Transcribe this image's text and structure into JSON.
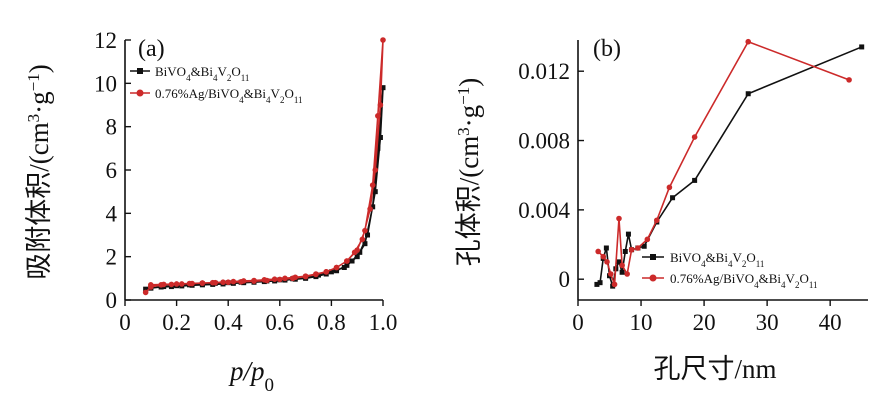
{
  "chart_data": [
    {
      "type": "line",
      "panel_label": "(a)",
      "xlabel": "p/p0",
      "ylabel": "吸附体积/(cm3·g−1)",
      "xlim": [
        0,
        1.0
      ],
      "ylim": [
        0,
        12
      ],
      "x_ticks": [
        "0",
        "0.2",
        "0.4",
        "0.6",
        "0.8",
        "1.0"
      ],
      "y_ticks": [
        "0",
        "2",
        "4",
        "6",
        "8",
        "10",
        "12"
      ],
      "grid": false,
      "legend_position": "top-left",
      "series": [
        {
          "name": "BiVO4&Bi4V2O11",
          "color": "#111111",
          "marker": "square",
          "x": [
            0.08,
            0.1,
            0.14,
            0.18,
            0.22,
            0.26,
            0.3,
            0.34,
            0.38,
            0.42,
            0.46,
            0.5,
            0.54,
            0.58,
            0.62,
            0.66,
            0.7,
            0.74,
            0.78,
            0.82,
            0.86,
            0.9,
            0.93,
            0.96,
            0.98,
            1.0,
            0.99,
            0.97,
            0.94,
            0.91,
            0.88,
            0.85,
            0.8,
            0.75,
            0.7,
            0.65,
            0.6,
            0.55,
            0.5,
            0.45,
            0.4,
            0.35,
            0.3,
            0.25,
            0.2,
            0.15,
            0.1
          ],
          "y": [
            0.5,
            0.55,
            0.6,
            0.62,
            0.65,
            0.68,
            0.7,
            0.72,
            0.74,
            0.77,
            0.8,
            0.82,
            0.85,
            0.88,
            0.92,
            0.96,
            1.0,
            1.08,
            1.2,
            1.35,
            1.6,
            2.0,
            2.6,
            4.3,
            7.0,
            9.8,
            7.5,
            5.0,
            3.0,
            2.2,
            1.8,
            1.5,
            1.3,
            1.15,
            1.05,
            0.98,
            0.93,
            0.88,
            0.85,
            0.82,
            0.8,
            0.77,
            0.74,
            0.7,
            0.66,
            0.62,
            0.55
          ]
        },
        {
          "name": "0.76%Ag/BiVO4&Bi4V2O11",
          "color": "#cc2a2a",
          "marker": "circle",
          "x": [
            0.08,
            0.1,
            0.14,
            0.18,
            0.22,
            0.26,
            0.3,
            0.34,
            0.38,
            0.42,
            0.46,
            0.5,
            0.54,
            0.58,
            0.62,
            0.66,
            0.7,
            0.74,
            0.78,
            0.82,
            0.86,
            0.9,
            0.93,
            0.96,
            0.98,
            1.0,
            0.99,
            0.97,
            0.95,
            0.92,
            0.89,
            0.86,
            0.82,
            0.78,
            0.74,
            0.7,
            0.65,
            0.6,
            0.55,
            0.5,
            0.45,
            0.4,
            0.35,
            0.3,
            0.25,
            0.2,
            0.15,
            0.1
          ],
          "y": [
            0.35,
            0.6,
            0.7,
            0.72,
            0.74,
            0.76,
            0.78,
            0.8,
            0.82,
            0.85,
            0.88,
            0.9,
            0.93,
            0.96,
            1.0,
            1.05,
            1.1,
            1.2,
            1.3,
            1.5,
            1.8,
            2.3,
            3.2,
            5.3,
            8.5,
            12.0,
            9.0,
            6.0,
            4.2,
            2.8,
            2.2,
            1.8,
            1.5,
            1.3,
            1.18,
            1.08,
            1.0,
            0.95,
            0.9,
            0.87,
            0.84,
            0.82,
            0.8,
            0.78,
            0.76,
            0.74,
            0.72,
            0.7
          ]
        }
      ]
    },
    {
      "type": "line",
      "panel_label": "(b)",
      "xlabel": "孔尺寸/nm",
      "ylabel": "孔体积/(cm3·g−1)",
      "xlim": [
        0,
        46
      ],
      "ylim": [
        -0.0012,
        0.0138
      ],
      "x_ticks": [
        "0",
        "10",
        "20",
        "30",
        "40"
      ],
      "y_ticks": [
        "0",
        "0.004",
        "0.008",
        "0.012"
      ],
      "grid": false,
      "legend_position": "bottom-right",
      "series": [
        {
          "name": "BiVO4&Bi4V2O11",
          "color": "#111111",
          "marker": "square",
          "x": [
            3.0,
            3.5,
            4.0,
            4.5,
            5.0,
            5.5,
            6.0,
            6.5,
            7.0,
            7.5,
            8.0,
            8.5,
            9.5,
            10.5,
            12.5,
            15.0,
            18.5,
            27.0,
            45.0
          ],
          "y": [
            -0.0003,
            -0.0002,
            0.0012,
            0.0018,
            0.0002,
            -0.0004,
            0.0006,
            0.001,
            0.0004,
            0.0016,
            0.0026,
            0.0017,
            0.0018,
            0.0019,
            0.0033,
            0.0047,
            0.0057,
            0.0107,
            0.0134
          ]
        },
        {
          "name": "0.76%Ag/BiVO4&Bi4V2O11",
          "color": "#cc2a2a",
          "marker": "circle",
          "x": [
            3.2,
            4.0,
            4.6,
            5.2,
            5.8,
            6.5,
            7.0,
            7.8,
            8.5,
            9.5,
            11.0,
            12.5,
            14.5,
            18.5,
            27.0,
            43.0
          ],
          "y": [
            0.0016,
            0.0013,
            0.001,
            0.0003,
            -0.0003,
            0.0035,
            0.0008,
            0.0003,
            0.0017,
            0.0018,
            0.0023,
            0.0034,
            0.0053,
            0.0082,
            0.0137,
            0.0115
          ]
        }
      ]
    }
  ]
}
